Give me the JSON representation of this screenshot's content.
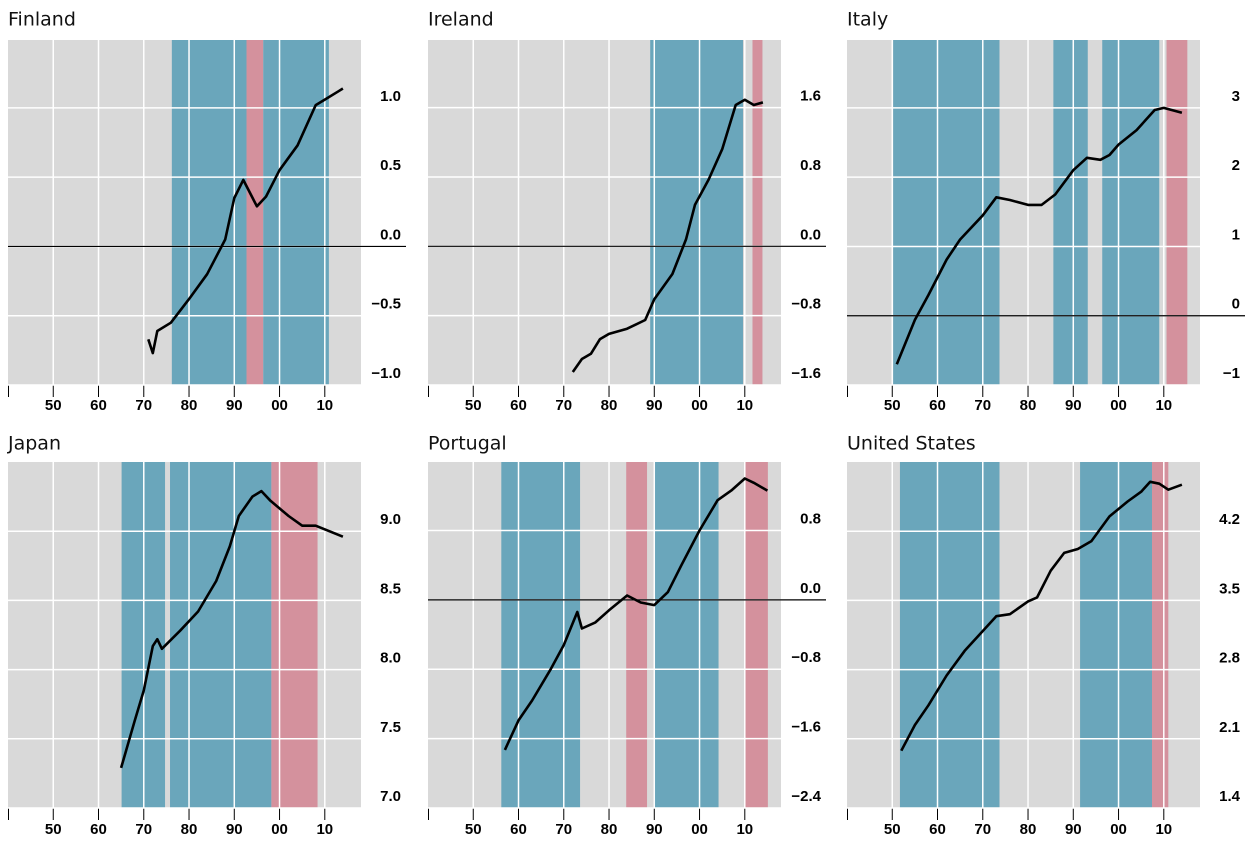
{
  "chart_data": [
    {
      "type": "line",
      "title": "Finland",
      "color": "#000000",
      "grid": true,
      "xlim": [
        1940,
        2018
      ],
      "ylim": [
        -1.0,
        1.49
      ],
      "xticks": [
        {
          "value": 1950,
          "label": "50"
        },
        {
          "value": 1960,
          "label": "60"
        },
        {
          "value": 1970,
          "label": "70"
        },
        {
          "value": 1980,
          "label": "80"
        },
        {
          "value": 1990,
          "label": "90"
        },
        {
          "value": 2000,
          "label": "00"
        },
        {
          "value": 2010,
          "label": "10"
        }
      ],
      "yticks": [
        {
          "value": 1.0,
          "label": "1.0"
        },
        {
          "value": 0.5,
          "label": "0.5"
        },
        {
          "value": 0,
          "label": "0.0"
        },
        {
          "value": -0.5,
          "label": "−0.5"
        },
        {
          "value": -1.0,
          "label": "−1.0"
        }
      ],
      "shaded_periods": [
        {
          "start": 1976.2,
          "end": 1992.7,
          "color": "#6aa6bb"
        },
        {
          "start": 1992.7,
          "end": 1996.4,
          "color": "#d4919d"
        },
        {
          "start": 1996.4,
          "end": 2010.9,
          "color": "#6aa6bb"
        }
      ],
      "x": [
        1971,
        1972,
        1973,
        1976,
        1980,
        1984,
        1988,
        1990,
        1992,
        1995,
        1997,
        2000,
        2004,
        2008,
        2010,
        2013,
        2014
      ],
      "values": [
        -0.67,
        -0.77,
        -0.61,
        -0.55,
        -0.38,
        -0.2,
        0.05,
        0.35,
        0.48,
        0.29,
        0.36,
        0.55,
        0.73,
        1.02,
        1.06,
        1.12,
        1.14
      ]
    },
    {
      "type": "line",
      "title": "Ireland",
      "color": "#000000",
      "grid": true,
      "xlim": [
        1940,
        2018
      ],
      "ylim": [
        -1.6,
        2.38
      ],
      "xticks": [
        {
          "value": 1950,
          "label": "50"
        },
        {
          "value": 1960,
          "label": "60"
        },
        {
          "value": 1970,
          "label": "70"
        },
        {
          "value": 1980,
          "label": "80"
        },
        {
          "value": 1990,
          "label": "90"
        },
        {
          "value": 2000,
          "label": "00"
        },
        {
          "value": 2010,
          "label": "10"
        }
      ],
      "yticks": [
        {
          "value": 1.6,
          "label": "1.6"
        },
        {
          "value": 0.8,
          "label": "0.8"
        },
        {
          "value": 0,
          "label": "0.0"
        },
        {
          "value": -0.8,
          "label": "−0.8"
        },
        {
          "value": -1.6,
          "label": "−1.6"
        }
      ],
      "shaded_periods": [
        {
          "start": 1989.1,
          "end": 2009.6,
          "color": "#6aa6bb"
        },
        {
          "start": 2011.7,
          "end": 2013.9,
          "color": "#d4919d"
        }
      ],
      "x": [
        1972,
        1974,
        1976,
        1978,
        1980,
        1984,
        1988,
        1990,
        1994,
        1997,
        1999,
        2002,
        2005,
        2008,
        2010,
        2012,
        2014
      ],
      "values": [
        -1.45,
        -1.3,
        -1.24,
        -1.07,
        -1.01,
        -0.95,
        -0.85,
        -0.61,
        -0.32,
        0.08,
        0.48,
        0.77,
        1.12,
        1.63,
        1.69,
        1.63,
        1.66
      ]
    },
    {
      "type": "line",
      "title": "Italy",
      "color": "#000000",
      "grid": true,
      "xlim": [
        1940,
        2018
      ],
      "ylim": [
        -1,
        3.98
      ],
      "xticks": [
        {
          "value": 1950,
          "label": "50"
        },
        {
          "value": 1960,
          "label": "60"
        },
        {
          "value": 1970,
          "label": "70"
        },
        {
          "value": 1980,
          "label": "80"
        },
        {
          "value": 1990,
          "label": "90"
        },
        {
          "value": 2000,
          "label": "00"
        },
        {
          "value": 2010,
          "label": "10"
        }
      ],
      "yticks": [
        3,
        2,
        1,
        0,
        {
          "value": -1,
          "label": "−1"
        }
      ],
      "shaded_periods": [
        {
          "start": 1950.2,
          "end": 1973.7,
          "color": "#6aa6bb"
        },
        {
          "start": 1985.6,
          "end": 1993.2,
          "color": "#6aa6bb"
        },
        {
          "start": 1996.4,
          "end": 2009,
          "color": "#6aa6bb"
        },
        {
          "start": 2010.6,
          "end": 2015.2,
          "color": "#d4919d"
        }
      ],
      "x": [
        1951,
        1955,
        1958,
        1962,
        1965,
        1970,
        1973,
        1976,
        1980,
        1983,
        1986,
        1990,
        1993,
        1996,
        1998,
        2000,
        2004,
        2008,
        2010,
        2014
      ],
      "values": [
        -0.7,
        -0.06,
        0.3,
        0.81,
        1.1,
        1.45,
        1.71,
        1.67,
        1.6,
        1.6,
        1.75,
        2.1,
        2.28,
        2.25,
        2.32,
        2.47,
        2.68,
        2.97,
        3.0,
        2.93
      ]
    },
    {
      "type": "line",
      "title": "Japan",
      "color": "#000000",
      "grid": true,
      "xlim": [
        1940,
        2018
      ],
      "ylim": [
        7.0,
        9.5
      ],
      "xticks": [
        {
          "value": 1950,
          "label": "50"
        },
        {
          "value": 1960,
          "label": "60"
        },
        {
          "value": 1970,
          "label": "70"
        },
        {
          "value": 1980,
          "label": "80"
        },
        {
          "value": 1990,
          "label": "90"
        },
        {
          "value": 2000,
          "label": "00"
        },
        {
          "value": 2010,
          "label": "10"
        }
      ],
      "yticks": [
        {
          "value": 9.0,
          "label": "9.0"
        },
        8.5,
        {
          "value": 8.0,
          "label": "8.0"
        },
        7.5,
        {
          "value": 7.0,
          "label": "7.0"
        }
      ],
      "shaded_periods": [
        {
          "start": 1965.1,
          "end": 1974.7,
          "color": "#6aa6bb"
        },
        {
          "start": 1975.8,
          "end": 1998.2,
          "color": "#6aa6bb"
        },
        {
          "start": 1998.2,
          "end": 2008.4,
          "color": "#d4919d"
        }
      ],
      "x": [
        1965,
        1968,
        1970,
        1972,
        1973,
        1974,
        1978,
        1982,
        1986,
        1989,
        1991,
        1994,
        1996,
        1998,
        2002,
        2005,
        2008,
        2014
      ],
      "values": [
        7.29,
        7.63,
        7.85,
        8.17,
        8.22,
        8.15,
        8.28,
        8.42,
        8.64,
        8.89,
        9.11,
        9.25,
        9.29,
        9.22,
        9.11,
        9.04,
        9.04,
        8.96
      ]
    },
    {
      "type": "line",
      "title": "Portugal",
      "color": "#000000",
      "grid": true,
      "xlim": [
        1940,
        2018
      ],
      "ylim": [
        -2.4,
        1.59
      ],
      "xticks": [
        {
          "value": 1950,
          "label": "50"
        },
        {
          "value": 1960,
          "label": "60"
        },
        {
          "value": 1970,
          "label": "70"
        },
        {
          "value": 1980,
          "label": "80"
        },
        {
          "value": 1990,
          "label": "90"
        },
        {
          "value": 2000,
          "label": "00"
        },
        {
          "value": 2010,
          "label": "10"
        }
      ],
      "yticks": [
        0.8,
        {
          "value": 0,
          "label": "0.0"
        },
        {
          "value": -0.8,
          "label": "−0.8"
        },
        {
          "value": -1.6,
          "label": "−1.6"
        },
        {
          "value": -2.4,
          "label": "−2.4"
        }
      ],
      "shaded_periods": [
        {
          "start": 1956.2,
          "end": 1973.6,
          "color": "#6aa6bb"
        },
        {
          "start": 1983.8,
          "end": 1988.4,
          "color": "#d4919d"
        },
        {
          "start": 1990,
          "end": 2004.2,
          "color": "#6aa6bb"
        },
        {
          "start": 2010,
          "end": 2015.1,
          "color": "#d4919d"
        }
      ],
      "x": [
        1957,
        1960,
        1963,
        1967,
        1970,
        1973,
        1974,
        1977,
        1980,
        1984,
        1987,
        1990,
        1993,
        1996,
        2000,
        2004,
        2007,
        2010,
        2012,
        2015
      ],
      "values": [
        -1.73,
        -1.39,
        -1.16,
        -0.81,
        -0.52,
        -0.14,
        -0.33,
        -0.26,
        -0.12,
        0.05,
        -0.03,
        -0.06,
        0.09,
        0.4,
        0.8,
        1.15,
        1.26,
        1.4,
        1.35,
        1.26
      ]
    },
    {
      "type": "line",
      "title": "United States",
      "color": "#000000",
      "grid": true,
      "xlim": [
        1940,
        2018
      ],
      "ylim": [
        1.4,
        4.9
      ],
      "xticks": [
        {
          "value": 1950,
          "label": "50"
        },
        {
          "value": 1960,
          "label": "60"
        },
        {
          "value": 1970,
          "label": "70"
        },
        {
          "value": 1980,
          "label": "80"
        },
        {
          "value": 1990,
          "label": "90"
        },
        {
          "value": 2000,
          "label": "00"
        },
        {
          "value": 2010,
          "label": "10"
        }
      ],
      "yticks": [
        4.2,
        3.5,
        2.8,
        2.1,
        1.4
      ],
      "shaded_periods": [
        {
          "start": 1951.7,
          "end": 1973.7,
          "color": "#6aa6bb"
        },
        {
          "start": 1991.5,
          "end": 2007.4,
          "color": "#6aa6bb"
        },
        {
          "start": 2007.4,
          "end": 2011,
          "color": "#d4919d"
        }
      ],
      "x": [
        1952,
        1955,
        1958,
        1962,
        1966,
        1970,
        1973,
        1976,
        1980,
        1982,
        1985,
        1988,
        1991,
        1994,
        1998,
        2002,
        2005,
        2007,
        2009,
        2011,
        2014
      ],
      "values": [
        1.98,
        2.24,
        2.44,
        2.74,
        2.99,
        3.19,
        3.34,
        3.36,
        3.49,
        3.53,
        3.8,
        3.98,
        4.02,
        4.1,
        4.35,
        4.5,
        4.6,
        4.7,
        4.68,
        4.62,
        4.67
      ]
    }
  ]
}
